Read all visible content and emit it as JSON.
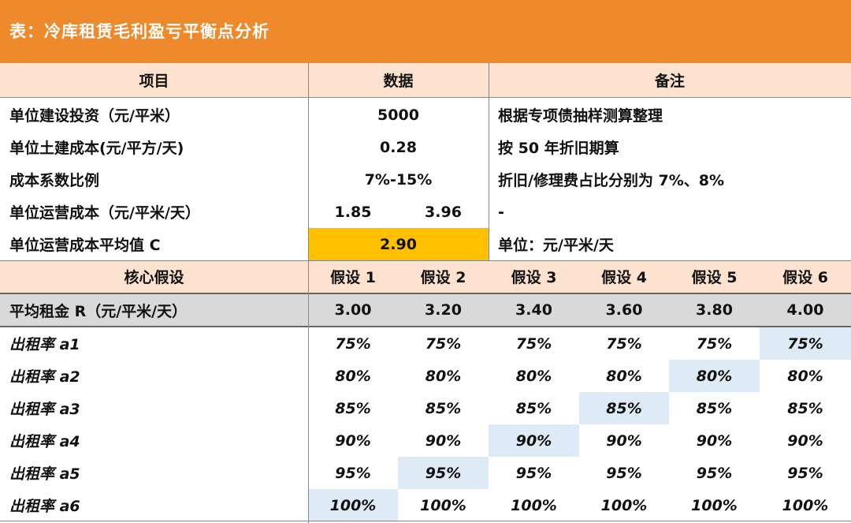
{
  "title": "表：冷库租赁毛利盈亏平衡点分析",
  "header": {
    "item": "项目",
    "data": "数据",
    "note": "备注"
  },
  "rows": {
    "r1": {
      "label": "单位建设投资（元/平米）",
      "value": "5000",
      "note": "根据专项债抽样测算整理"
    },
    "r2": {
      "label": "单位土建成本(元/平方/天)",
      "value": "0.28",
      "note": "按 50 年折旧期算"
    },
    "r3": {
      "label": "成本系数比例",
      "value": "7%-15%",
      "note": "折旧/修理费占比分别为 7%、8%"
    },
    "r4": {
      "label": "单位运营成本（元/平米/天）",
      "value_a": "1.85",
      "value_b": "3.96",
      "note": "-"
    },
    "r5": {
      "label": "单位运营成本平均值 C",
      "value": "2.90",
      "note": "单位：元/平米/天"
    }
  },
  "assumptions": {
    "label": "核心假设",
    "headers": [
      "假设 1",
      "假设 2",
      "假设 3",
      "假设 4",
      "假设 5",
      "假设 6"
    ]
  },
  "rent": {
    "label": "平均租金 R（元/平米/天）",
    "values": [
      "3.00",
      "3.20",
      "3.40",
      "3.60",
      "3.80",
      "4.00"
    ]
  },
  "occupancy": [
    {
      "label": "出租率 a1",
      "values": [
        "75%",
        "75%",
        "75%",
        "75%",
        "75%",
        "75%"
      ],
      "highlight": 5
    },
    {
      "label": "出租率 a2",
      "values": [
        "80%",
        "80%",
        "80%",
        "80%",
        "80%",
        "80%"
      ],
      "highlight": 4
    },
    {
      "label": "出租率 a3",
      "values": [
        "85%",
        "85%",
        "85%",
        "85%",
        "85%",
        "85%"
      ],
      "highlight": 3
    },
    {
      "label": "出租率 a4",
      "values": [
        "90%",
        "90%",
        "90%",
        "90%",
        "90%",
        "90%"
      ],
      "highlight": 2
    },
    {
      "label": "出租率 a5",
      "values": [
        "95%",
        "95%",
        "95%",
        "95%",
        "95%",
        "95%"
      ],
      "highlight": 1
    },
    {
      "label": "出租率 a6",
      "values": [
        "100%",
        "100%",
        "100%",
        "100%",
        "100%",
        "100%"
      ],
      "highlight": 0
    }
  ],
  "colors": {
    "title_bg": "#ef8a2c",
    "header_bg": "#fde3cf",
    "rent_bg": "#d9d9d9",
    "average_bg": "#ffc000",
    "highlight_bg": "#deebf7"
  }
}
